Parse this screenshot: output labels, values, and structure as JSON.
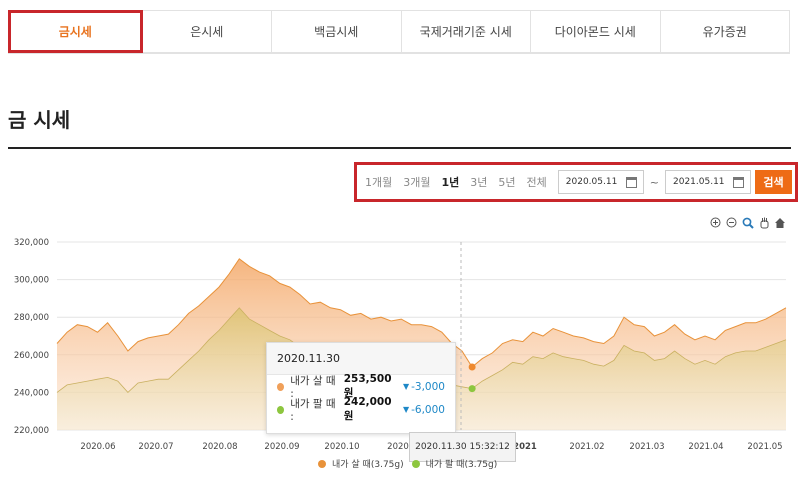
{
  "tabs": [
    {
      "label": "금시세",
      "active": true
    },
    {
      "label": "은시세",
      "active": false
    },
    {
      "label": "백금시세",
      "active": false
    },
    {
      "label": "국제거래기준 시세",
      "active": false
    },
    {
      "label": "다이아몬드 시세",
      "active": false
    },
    {
      "label": "유가증권",
      "active": false
    }
  ],
  "page_title": "금 시세",
  "filter": {
    "periods": [
      "1개월",
      "3개월",
      "1년",
      "3년",
      "5년",
      "전체"
    ],
    "selected_period": "1년",
    "start_date": "2020.05.11",
    "end_date": "2021.05.11",
    "separator": "~",
    "search_label": "검색"
  },
  "colors": {
    "accent": "#ee6b15",
    "highlight_border": "#c8262b",
    "buy_series": "#f0a05a",
    "sell_series": "#8dc63f",
    "change_down": "#1e88c7"
  },
  "tooltip": {
    "date": "2020.11.30",
    "buy_label": "내가 살 때 :",
    "buy_value": "253,500원",
    "buy_change": "-3,000",
    "sell_label": "내가 팔 때 :",
    "sell_value": "242,000원",
    "sell_change": "-6,000"
  },
  "time_badge": "2020.11.30 15:32:12",
  "chart_data": {
    "type": "area",
    "y_ticks": [
      "220,000",
      "240,000",
      "260,000",
      "280,000",
      "300,000",
      "320,000"
    ],
    "ylim": [
      220000,
      320000
    ],
    "x_ticks": [
      "2020.06",
      "2020.07",
      "2020.08",
      "2020.09",
      "2020.10",
      "2020",
      "2021",
      "2021.02",
      "2021.03",
      "2021.04",
      "2021.05"
    ],
    "series": [
      {
        "name": "내가 살 때(3.75g)",
        "values": [
          266000,
          272000,
          276000,
          275000,
          272000,
          277000,
          270000,
          262000,
          267000,
          269000,
          270000,
          271000,
          276000,
          282000,
          286000,
          291000,
          296000,
          303000,
          311000,
          307000,
          304000,
          302000,
          298000,
          296000,
          292000,
          287000,
          288000,
          285000,
          284000,
          281000,
          282000,
          279000,
          280000,
          278000,
          279000,
          276000,
          276000,
          275000,
          272000,
          266000,
          262000,
          253500,
          258000,
          261000,
          266000,
          268000,
          267000,
          272000,
          270000,
          274000,
          272000,
          270000,
          269000,
          267000,
          266000,
          270000,
          280000,
          276000,
          275000,
          270000,
          272000,
          276000,
          271000,
          268000,
          270000,
          268000,
          273000,
          275000,
          277000,
          277000,
          279000,
          282000,
          285000
        ]
      },
      {
        "name": "내가 팔 때(3.75g)",
        "values": [
          240000,
          244000,
          245000,
          246000,
          247000,
          248000,
          246000,
          240000,
          245000,
          246000,
          247000,
          247000,
          252000,
          257000,
          262000,
          268000,
          273000,
          279000,
          285000,
          279000,
          276000,
          273000,
          270000,
          268000,
          264000,
          259000,
          262000,
          259000,
          258000,
          257000,
          256000,
          255000,
          254000,
          254000,
          255000,
          252000,
          252000,
          251000,
          248000,
          244000,
          243000,
          242000,
          246000,
          249000,
          252000,
          256000,
          255000,
          259000,
          258000,
          261000,
          259000,
          258000,
          257000,
          255000,
          254000,
          257000,
          265000,
          262000,
          261000,
          257000,
          258000,
          262000,
          258000,
          255000,
          257000,
          255000,
          259000,
          261000,
          262000,
          262000,
          264000,
          266000,
          268000
        ]
      }
    ],
    "highlight_index": 41,
    "legend_placement": "bottom"
  }
}
